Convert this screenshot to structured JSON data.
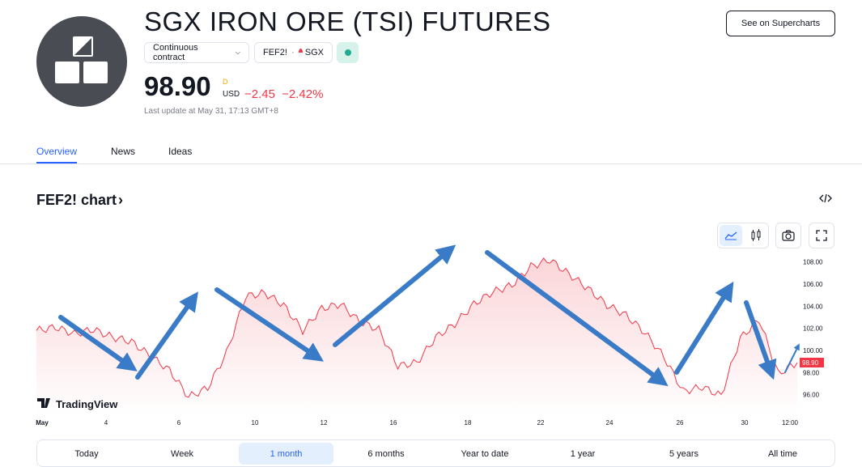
{
  "header": {
    "title": "SGX IRON ORE (TSI) FUTURES",
    "contract_label": "Continuous contract",
    "symbol_pill": "FEF2!",
    "exchange": "SGX",
    "price": "98.90",
    "price_flag": "D",
    "currency": "USD",
    "change": "−2.45",
    "change_pct": "−2.42%",
    "last_update": "Last update at May 31, 17:13 GMT+8",
    "supercharts_label": "See on Supercharts"
  },
  "tabs": [
    {
      "label": "Overview",
      "active": true
    },
    {
      "label": "News",
      "active": false
    },
    {
      "label": "Ideas",
      "active": false
    }
  ],
  "chart_section": {
    "title": "FEF2! chart",
    "watermark": "TradingView",
    "price_tag": "98.90"
  },
  "chart_data": {
    "type": "area",
    "y_ticks": [
      "108.00",
      "106.00",
      "104.00",
      "102.00",
      "100.00",
      "98.00",
      "96.00"
    ],
    "x_ticks": [
      "May",
      "4",
      "6",
      "10",
      "12",
      "16",
      "18",
      "22",
      "24",
      "26",
      "30",
      "12:00"
    ],
    "ylim": [
      94,
      109
    ],
    "x": [
      0,
      1,
      2,
      3,
      4,
      5,
      6,
      7,
      8,
      9,
      10,
      11,
      12,
      13,
      14,
      15,
      16,
      17,
      18,
      19,
      20,
      21,
      22,
      23,
      24,
      25,
      26,
      27,
      28,
      29,
      30,
      31,
      32,
      33,
      34,
      35,
      36,
      37,
      38,
      39,
      40
    ],
    "values": [
      101.8,
      102.1,
      101.5,
      101.9,
      101.2,
      100.8,
      99.5,
      98.2,
      95.8,
      96.6,
      99.8,
      104.9,
      105.2,
      104.1,
      101.8,
      103.8,
      104.2,
      102.6,
      101.9,
      98.6,
      98.9,
      101.2,
      102.4,
      104.2,
      105.3,
      105.9,
      107.6,
      108.2,
      106.9,
      105.6,
      104.1,
      103.2,
      101.6,
      99.4,
      96.3,
      96.7,
      95.9,
      101.1,
      102.8,
      97.9,
      98.9
    ],
    "last_price": 98.9,
    "colors": {
      "line": "#f23645",
      "fill_top": "#fbd5d8",
      "fill_bottom": "#ffffff",
      "arrow": "#3a7bc8"
    }
  },
  "toolbar": {
    "icons": [
      "area-chart-icon",
      "candles-icon",
      "camera-icon",
      "fullscreen-icon",
      "embed-code-icon"
    ]
  },
  "ranges": [
    {
      "label": "Today",
      "active": false
    },
    {
      "label": "Week",
      "active": false
    },
    {
      "label": "1 month",
      "active": true
    },
    {
      "label": "6 months",
      "active": false
    },
    {
      "label": "Year to date",
      "active": false
    },
    {
      "label": "1 year",
      "active": false
    },
    {
      "label": "5 years",
      "active": false
    },
    {
      "label": "All time",
      "active": false
    }
  ]
}
